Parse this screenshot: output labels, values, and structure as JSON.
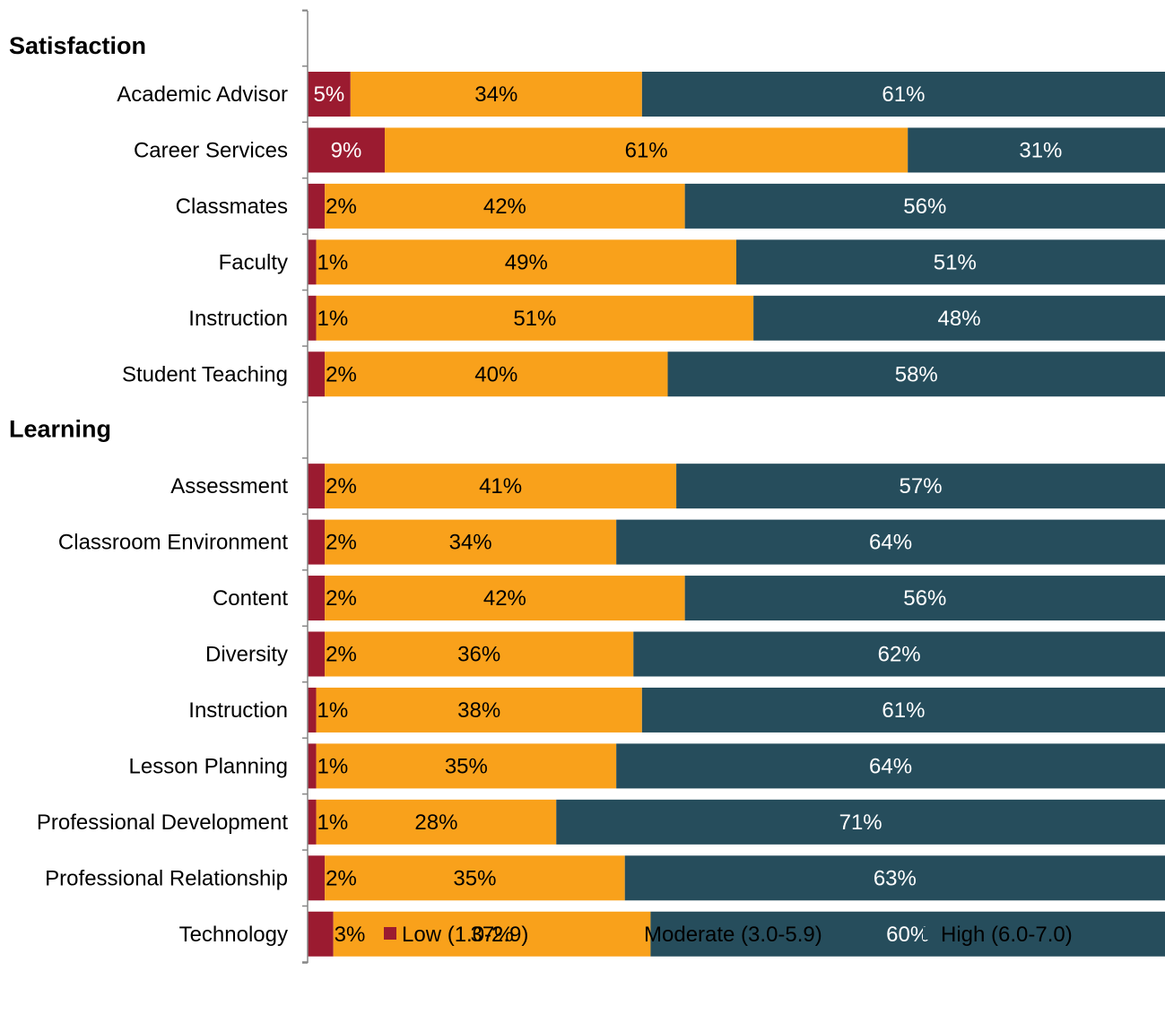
{
  "colors": {
    "low": "#9b1b30",
    "moderate": "#f9a11b",
    "high": "#264d5c",
    "axis": "#868686"
  },
  "chart_data": {
    "type": "bar",
    "orientation": "horizontal",
    "stacked": true,
    "percent_stacked": true,
    "xlim": [
      0,
      100
    ],
    "grid": false,
    "legend_position": "bottom",
    "groups": [
      {
        "heading": "Satisfaction",
        "categories": [
          "Academic Advisor",
          "Career Services",
          "Classmates",
          "Faculty",
          "Instruction",
          "Student Teaching"
        ],
        "series": [
          {
            "name": "Low (1.0-2.9)",
            "key": "low",
            "values": [
              5,
              9,
              2,
              1,
              1,
              2
            ]
          },
          {
            "name": "Moderate (3.0-5.9)",
            "key": "moderate",
            "values": [
              34,
              61,
              42,
              49,
              51,
              40
            ]
          },
          {
            "name": "High (6.0-7.0)",
            "key": "high",
            "values": [
              61,
              31,
              56,
              51,
              48,
              58
            ]
          }
        ]
      },
      {
        "heading": "Learning",
        "categories": [
          "Assessment",
          "Classroom Environment",
          "Content",
          "Diversity",
          "Instruction",
          "Lesson Planning",
          "Professional Development",
          "Professional Relationship",
          "Technology"
        ],
        "series": [
          {
            "name": "Low (1.0-2.9)",
            "key": "low",
            "values": [
              2,
              2,
              2,
              2,
              1,
              1,
              1,
              2,
              3
            ]
          },
          {
            "name": "Moderate (3.0-5.9)",
            "key": "moderate",
            "values": [
              41,
              34,
              42,
              36,
              38,
              35,
              28,
              35,
              37
            ]
          },
          {
            "name": "High (6.0-7.0)",
            "key": "high",
            "values": [
              57,
              64,
              56,
              62,
              61,
              64,
              71,
              63,
              60
            ]
          }
        ]
      }
    ]
  }
}
